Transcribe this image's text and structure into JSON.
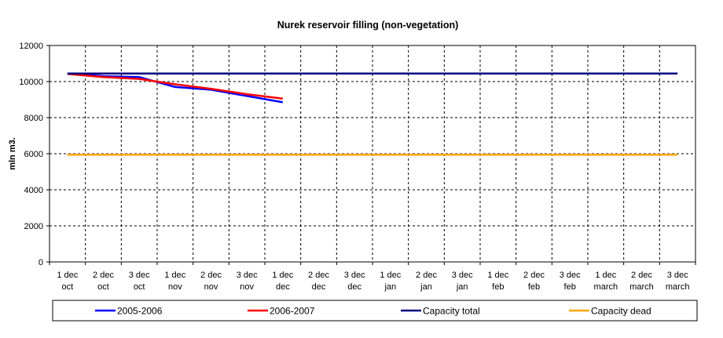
{
  "chart_data": {
    "type": "line",
    "title": "Nurek reservoir filling (non-vegetation)",
    "xlabel": "",
    "ylabel": "mln m3.",
    "ylim": [
      0,
      12000
    ],
    "yticks": [
      0,
      2000,
      4000,
      6000,
      8000,
      10000,
      12000
    ],
    "grid": true,
    "legend_position": "bottom",
    "categories": [
      [
        "1 dec",
        "oct"
      ],
      [
        "2 dec",
        "oct"
      ],
      [
        "3 dec",
        "oct"
      ],
      [
        "1 dec",
        "nov"
      ],
      [
        "2 dec",
        "nov"
      ],
      [
        "3 dec",
        "nov"
      ],
      [
        "1 dec",
        "dec"
      ],
      [
        "2 dec",
        "dec"
      ],
      [
        "3 dec",
        "dec"
      ],
      [
        "1 dec",
        "jan"
      ],
      [
        "2 dec",
        "jan"
      ],
      [
        "3 dec",
        "jan"
      ],
      [
        "1 dec",
        "feb"
      ],
      [
        "2 dec",
        "feb"
      ],
      [
        "3 dec",
        "feb"
      ],
      [
        "1 dec",
        "march"
      ],
      [
        "2 dec",
        "march"
      ],
      [
        "3 dec",
        "march"
      ]
    ],
    "series": [
      {
        "name": "2005-2006",
        "color": "#0000ff",
        "values": [
          10450,
          10300,
          10250,
          9700,
          9550,
          9200,
          8850,
          null,
          null,
          null,
          null,
          null,
          null,
          null,
          null,
          null,
          null,
          null
        ]
      },
      {
        "name": "2006-2007",
        "color": "#ff0000",
        "values": [
          10420,
          10250,
          10150,
          9850,
          9600,
          9300,
          9050,
          null,
          null,
          null,
          null,
          null,
          null,
          null,
          null,
          null,
          null,
          null
        ]
      },
      {
        "name": "Capacity total",
        "color": "#000080",
        "values": [
          10450,
          10450,
          10450,
          10450,
          10450,
          10450,
          10450,
          10450,
          10450,
          10450,
          10450,
          10450,
          10450,
          10450,
          10450,
          10450,
          10450,
          10450
        ]
      },
      {
        "name": "Capacity dead",
        "color": "#ffa500",
        "values": [
          5950,
          5950,
          5950,
          5950,
          5950,
          5950,
          5950,
          5950,
          5950,
          5950,
          5950,
          5950,
          5950,
          5950,
          5950,
          5950,
          5950,
          5950
        ]
      }
    ]
  }
}
